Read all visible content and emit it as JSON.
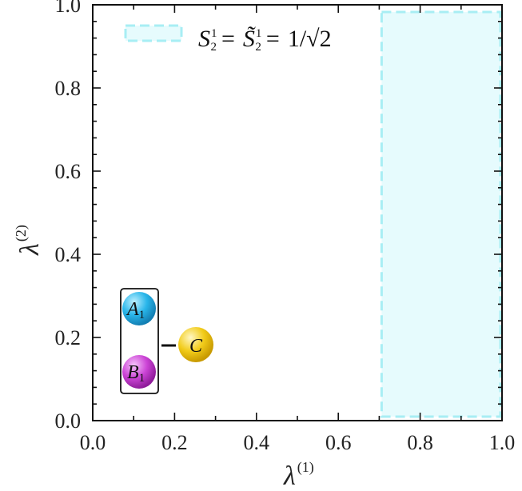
{
  "chart_data": {
    "type": "area",
    "xlabel": "λ",
    "xlabel_sup": "(1)",
    "ylabel": "λ",
    "ylabel_sup": "(2)",
    "xlim": [
      0.0,
      1.0
    ],
    "ylim": [
      0.0,
      1.0
    ],
    "xticks": [
      "0.0",
      "0.2",
      "0.4",
      "0.6",
      "0.8",
      "1.0"
    ],
    "yticks": [
      "0.0",
      "0.2",
      "0.4",
      "0.6",
      "0.8",
      "1.0"
    ],
    "grid": false,
    "legend_position": "top",
    "series": [
      {
        "name": "S₂¹ = S̃₂¹ = 1/√2",
        "fill_color": "#e6fbfd",
        "edge_color": "#a8eef4",
        "edge_style": "dashed",
        "region": {
          "x": [
            0.7,
            1.0
          ],
          "y": [
            0.0,
            1.0
          ]
        }
      }
    ]
  },
  "legend": {
    "s": "S",
    "sub": "2",
    "sup": "1",
    "eq": "=",
    "s_tilde": "S̃",
    "eq2": "=",
    "value": "1/√2"
  },
  "diagram": {
    "node_a": "A",
    "node_a_sub": "1",
    "node_b": "B",
    "node_b_sub": "1",
    "node_c": "C",
    "colors": {
      "a": "#29b6ea",
      "b": "#cc44d6",
      "c": "#f2cc1a"
    }
  }
}
